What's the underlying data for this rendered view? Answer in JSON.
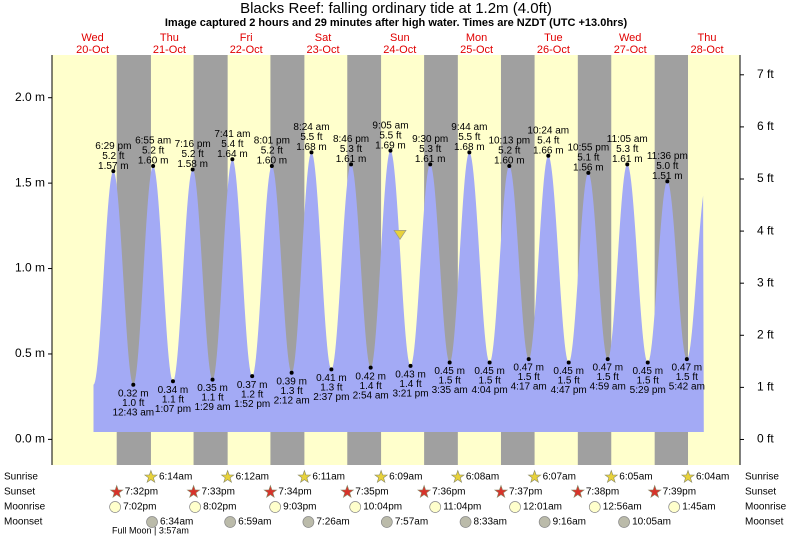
{
  "chart_data": {
    "type": "tide",
    "title": "Blacks Reef: falling  ordinary tide at 1.2m (4.0ft)",
    "subtitle": "Image captured 2 hours and 29 minutes after high water. Times are NZDT (UTC +13.0hrs)",
    "days": [
      {
        "weekday": "Wed",
        "date": "20-Oct"
      },
      {
        "weekday": "Thu",
        "date": "21-Oct"
      },
      {
        "weekday": "Fri",
        "date": "22-Oct"
      },
      {
        "weekday": "Sat",
        "date": "23-Oct"
      },
      {
        "weekday": "Sun",
        "date": "24-Oct"
      },
      {
        "weekday": "Mon",
        "date": "25-Oct"
      },
      {
        "weekday": "Tue",
        "date": "26-Oct"
      },
      {
        "weekday": "Wed",
        "date": "27-Oct"
      },
      {
        "weekday": "Thu",
        "date": "28-Oct"
      }
    ],
    "ylim": [
      -0.15,
      2.25
    ],
    "yticks": [
      {
        "value": 0,
        "label": "0.0 m"
      },
      {
        "value": 0.5,
        "label": "0.5 m"
      },
      {
        "value": 1,
        "label": "1.0 m"
      },
      {
        "value": 1.5,
        "label": "1.5 m"
      },
      {
        "value": 2,
        "label": "2.0 m"
      }
    ],
    "y2lim": [
      -0.49,
      7.38
    ],
    "y2ticks": [
      {
        "value": 0,
        "label": "0 ft"
      },
      {
        "value": 1,
        "label": "1 ft"
      },
      {
        "value": 2,
        "label": "2 ft"
      },
      {
        "value": 3,
        "label": "3 ft"
      },
      {
        "value": 4,
        "label": "4 ft"
      },
      {
        "value": 5,
        "label": "5 ft"
      },
      {
        "value": 6,
        "label": "6 ft"
      },
      {
        "value": 7,
        "label": "7 ft"
      }
    ],
    "color": "#a3aaf5",
    "current_level": 1.2,
    "tides": {
      "times": [
        "6:29 pm",
        "12:43 am",
        "6:55 am",
        "1:07 pm",
        "7:16 pm",
        "1:29 am",
        "7:41 am",
        "1:52 pm",
        "8:01 pm",
        "2:12 am",
        "8:24 am",
        "2:37 pm",
        "8:46 pm",
        "2:54 am",
        "9:05 am",
        "3:21 pm",
        "9:30 pm",
        "3:35 am",
        "9:44 am",
        "4:04 pm",
        "10:13 pm",
        "4:17 am",
        "10:24 am",
        "4:47 pm",
        "10:55 pm",
        "4:59 am",
        "11:05 am",
        "5:29 pm",
        "11:36 pm",
        "5:42 am"
      ],
      "values": [
        1.57,
        0.32,
        1.6,
        0.34,
        1.58,
        0.35,
        1.64,
        0.37,
        1.6,
        0.39,
        1.68,
        0.41,
        1.61,
        0.42,
        1.69,
        0.43,
        1.61,
        0.45,
        1.68,
        0.45,
        1.6,
        0.47,
        1.66,
        0.45,
        1.56,
        0.47,
        1.61,
        0.45,
        1.51,
        0.47
      ],
      "value_labels": [
        "1.57 m",
        "0.32 m",
        "1.60 m",
        "0.34 m",
        "1.58 m",
        "0.35 m",
        "1.64 m",
        "0.37 m",
        "1.60 m",
        "0.39 m",
        "1.68 m",
        "0.41 m",
        "1.61 m",
        "0.42 m",
        "1.69 m",
        "0.43 m",
        "1.61 m",
        "0.45 m",
        "1.68 m",
        "0.45 m",
        "1.60 m",
        "0.47 m",
        "1.66 m",
        "0.45 m",
        "1.56 m",
        "0.47 m",
        "1.61 m",
        "0.45 m",
        "1.51 m",
        "0.47 m"
      ],
      "ft_labels": [
        "5.2 ft",
        "1.0 ft",
        "5.2 ft",
        "1.1 ft",
        "5.2 ft",
        "1.1 ft",
        "5.4 ft",
        "1.2 ft",
        "5.2 ft",
        "1.3 ft",
        "5.5 ft",
        "1.3 ft",
        "5.3 ft",
        "1.4 ft",
        "5.5 ft",
        "1.4 ft",
        "5.3 ft",
        "1.5 ft",
        "5.5 ft",
        "1.5 ft",
        "5.2 ft",
        "1.5 ft",
        "5.4 ft",
        "1.5 ft",
        "5.1 ft",
        "1.5 ft",
        "5.3 ft",
        "1.5 ft",
        "5.0 ft",
        "1.5 ft"
      ]
    },
    "row_labels": {
      "sunrise": "Sunrise",
      "sunset": "Sunset",
      "moonrise": "Moonrise",
      "moonset": "Moonset"
    },
    "sunrise": [
      "6:14am",
      "6:12am",
      "6:11am",
      "6:09am",
      "6:08am",
      "6:07am",
      "6:05am",
      "6:04am"
    ],
    "sunset": [
      "7:32pm",
      "7:33pm",
      "7:34pm",
      "7:35pm",
      "7:36pm",
      "7:37pm",
      "7:38pm",
      "7:39pm"
    ],
    "moonrise": [
      "7:02pm",
      "8:02pm",
      "9:03pm",
      "10:04pm",
      "11:04pm",
      "12:01am",
      "12:56am",
      "1:45am"
    ],
    "moonset": [
      "6:34am",
      "6:59am",
      "7:26am",
      "7:57am",
      "8:33am",
      "9:16am",
      "10:05am"
    ],
    "moon_phase": "Full Moon | 3:57am"
  }
}
